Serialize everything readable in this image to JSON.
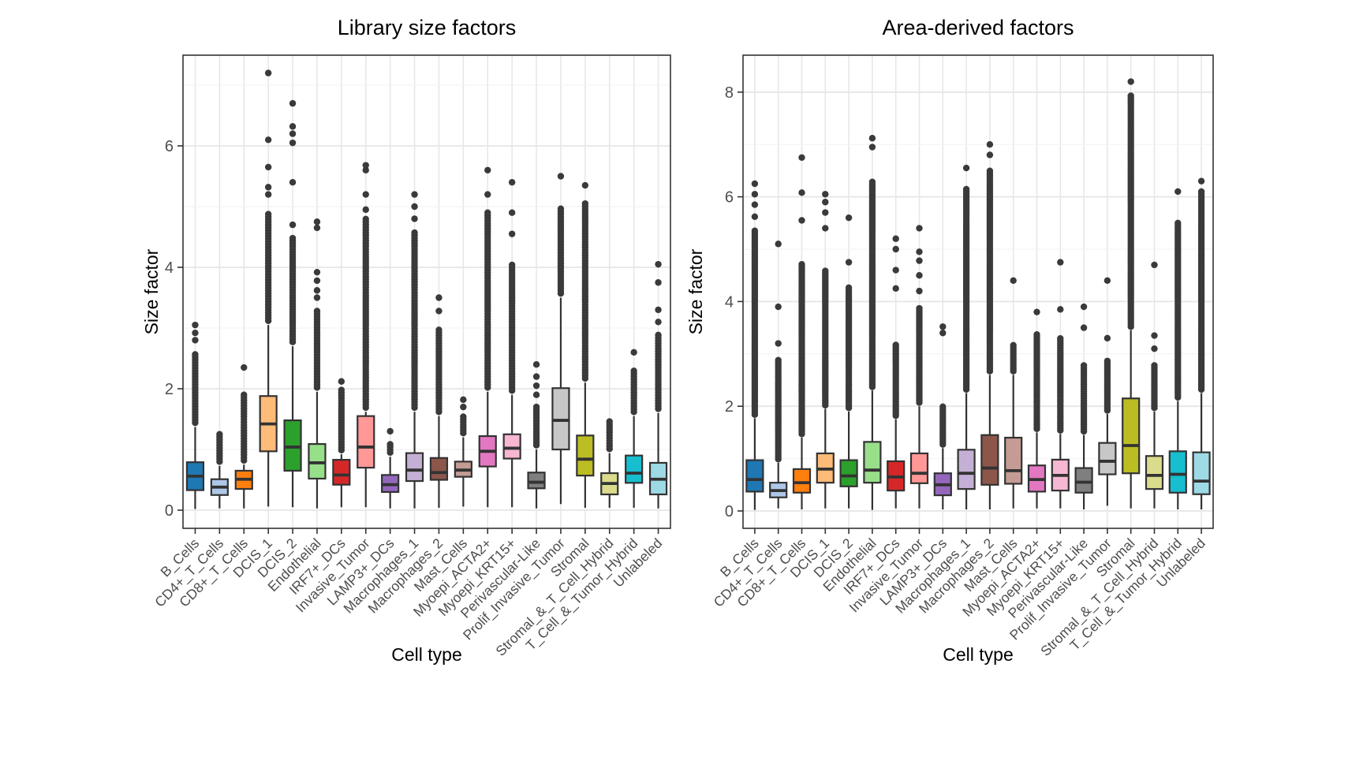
{
  "figure": {
    "background": "#ffffff",
    "outlier_color": "#3a3a3a",
    "box_stroke": "#333333"
  },
  "chart_data": {
    "type": "boxplot",
    "xlabel": "Cell type",
    "ylabel": "Size factor",
    "legend": "none",
    "grid": "on",
    "categories": [
      "B_Cells",
      "CD4+_T_Cells",
      "CD8+_T_Cells",
      "DCIS_1",
      "DCIS_2",
      "Endothelial",
      "IRF7+_DCs",
      "Invasive_Tumor",
      "LAMP3+_DCs",
      "Macrophages_1",
      "Macrophages_2",
      "Mast_Cells",
      "Myoepi_ACTA2+",
      "Myoepi_KRT15+",
      "Perivascular-Like",
      "Prolif_Invasive_Tumor",
      "Stromal",
      "Stromal_&_T_Cell_Hybrid",
      "T_Cell_&_Tumor_Hybrid",
      "Unlabeled"
    ],
    "category_colors": [
      "#1f77b4",
      "#aec7e8",
      "#ff7f0e",
      "#ffbb78",
      "#2ca02c",
      "#98df8a",
      "#d62728",
      "#ff9896",
      "#9467bd",
      "#c5b0d5",
      "#8c564b",
      "#c49c94",
      "#e377c2",
      "#f7b6d2",
      "#7f7f7f",
      "#c7c7c7",
      "#bcbd22",
      "#dbdb8d",
      "#17becf",
      "#9edae5"
    ],
    "panels": [
      {
        "title": "Library size factors",
        "yticks": [
          0,
          2,
          4,
          6
        ],
        "ylim": [
          -0.32,
          7.49
        ],
        "boxes": [
          {
            "category": "B_Cells",
            "lo": 0.02,
            "q1": 0.33,
            "median": 0.56,
            "q3": 0.79,
            "hi": 1.37,
            "outlier_run": [
              1.44,
              2.6
            ],
            "outliers": [
              2.8,
              2.92,
              3.05
            ]
          },
          {
            "category": "CD4+_T_Cells",
            "lo": 0.03,
            "q1": 0.25,
            "median": 0.38,
            "q3": 0.51,
            "hi": 0.73,
            "outlier_run": [
              0.8,
              1.25
            ],
            "outliers": []
          },
          {
            "category": "CD8+_T_Cells",
            "lo": 0.03,
            "q1": 0.35,
            "median": 0.51,
            "q3": 0.65,
            "hi": 0.75,
            "outlier_run": [
              0.82,
              1.9
            ],
            "outliers": [
              2.35
            ]
          },
          {
            "category": "DCIS_1",
            "lo": 0.06,
            "q1": 0.97,
            "median": 1.42,
            "q3": 1.88,
            "hi": 3.05,
            "outlier_run": [
              3.12,
              4.9
            ],
            "outliers": [
              5.2,
              5.32,
              5.65,
              6.1,
              7.2
            ]
          },
          {
            "category": "DCIS_2",
            "lo": 0.05,
            "q1": 0.65,
            "median": 1.04,
            "q3": 1.48,
            "hi": 2.7,
            "outlier_run": [
              2.77,
              4.5
            ],
            "outliers": [
              4.7,
              5.4,
              6.05,
              6.2,
              6.32,
              6.7
            ]
          },
          {
            "category": "Endothelial",
            "lo": 0.03,
            "q1": 0.52,
            "median": 0.78,
            "q3": 1.09,
            "hi": 1.95,
            "outlier_run": [
              2.02,
              3.3
            ],
            "outliers": [
              3.5,
              3.62,
              3.78,
              3.92,
              4.65,
              4.75
            ]
          },
          {
            "category": "IRF7+_DCs",
            "lo": 0.05,
            "q1": 0.42,
            "median": 0.58,
            "q3": 0.83,
            "hi": 0.92,
            "outlier_run": [
              0.99,
              2.0
            ],
            "outliers": [
              2.12
            ]
          },
          {
            "category": "Invasive_Tumor",
            "lo": 0.05,
            "q1": 0.7,
            "median": 1.04,
            "q3": 1.55,
            "hi": 1.62,
            "outlier_run": [
              1.69,
              4.8
            ],
            "outliers": [
              4.95,
              5.2,
              5.6,
              5.68
            ]
          },
          {
            "category": "LAMP3+_DCs",
            "lo": 0.03,
            "q1": 0.3,
            "median": 0.42,
            "q3": 0.58,
            "hi": 0.88,
            "outlier_run": [
              0.95,
              1.12
            ],
            "outliers": [
              1.3
            ]
          },
          {
            "category": "Macrophages_1",
            "lo": 0.03,
            "q1": 0.48,
            "median": 0.66,
            "q3": 0.94,
            "hi": 1.62,
            "outlier_run": [
              1.69,
              4.6
            ],
            "outliers": [
              4.8,
              5.0,
              5.2
            ]
          },
          {
            "category": "Macrophages_2",
            "lo": 0.04,
            "q1": 0.5,
            "median": 0.62,
            "q3": 0.86,
            "hi": 1.55,
            "outlier_run": [
              1.62,
              3.0
            ],
            "outliers": [
              3.28,
              3.5
            ]
          },
          {
            "category": "Mast_Cells",
            "lo": 0.06,
            "q1": 0.55,
            "median": 0.66,
            "q3": 0.8,
            "hi": 1.2,
            "outlier_run": [
              1.27,
              1.55
            ],
            "outliers": [
              1.7,
              1.82
            ]
          },
          {
            "category": "Myoepi_ACTA2+",
            "lo": 0.05,
            "q1": 0.72,
            "median": 0.97,
            "q3": 1.22,
            "hi": 1.95,
            "outlier_run": [
              2.02,
              4.9
            ],
            "outliers": [
              5.2,
              5.6
            ]
          },
          {
            "category": "Myoepi_KRT15+",
            "lo": 0.05,
            "q1": 0.85,
            "median": 1.02,
            "q3": 1.25,
            "hi": 1.9,
            "outlier_run": [
              1.97,
              4.05
            ],
            "outliers": [
              4.55,
              4.9,
              5.4
            ]
          },
          {
            "category": "Perivascular-Like",
            "lo": 0.03,
            "q1": 0.36,
            "median": 0.46,
            "q3": 0.62,
            "hi": 1.0,
            "outlier_run": [
              1.07,
              1.7
            ],
            "outliers": [
              1.9,
              2.05,
              2.2,
              2.4
            ]
          },
          {
            "category": "Prolif_Invasive_Tumor",
            "lo": 0.1,
            "q1": 1.0,
            "median": 1.48,
            "q3": 2.01,
            "hi": 3.5,
            "outlier_run": [
              3.57,
              5.0
            ],
            "outliers": [
              5.5
            ]
          },
          {
            "category": "Stromal",
            "lo": 0.04,
            "q1": 0.57,
            "median": 0.84,
            "q3": 1.23,
            "hi": 2.1,
            "outlier_run": [
              2.17,
              5.05
            ],
            "outliers": [
              5.35
            ]
          },
          {
            "category": "Stromal_&_T_Cell_Hybrid",
            "lo": 0.04,
            "q1": 0.26,
            "median": 0.44,
            "q3": 0.61,
            "hi": 0.94,
            "outlier_run": [
              1.01,
              1.5
            ],
            "outliers": []
          },
          {
            "category": "T_Cell_&_Tumor_Hybrid",
            "lo": 0.04,
            "q1": 0.45,
            "median": 0.61,
            "q3": 0.9,
            "hi": 1.55,
            "outlier_run": [
              1.62,
              2.3
            ],
            "outliers": [
              2.6
            ]
          },
          {
            "category": "Unlabeled",
            "lo": 0.03,
            "q1": 0.26,
            "median": 0.51,
            "q3": 0.78,
            "hi": 1.6,
            "outlier_run": [
              1.67,
              2.9
            ],
            "outliers": [
              3.1,
              3.3,
              3.75,
              4.05
            ]
          }
        ]
      },
      {
        "title": "Area-derived factors",
        "yticks": [
          0,
          2,
          4,
          6,
          8
        ],
        "ylim": [
          -0.32,
          8.7
        ],
        "boxes": [
          {
            "category": "B_Cells",
            "lo": 0.02,
            "q1": 0.37,
            "median": 0.6,
            "q3": 0.97,
            "hi": 1.77,
            "outlier_run": [
              1.84,
              5.35
            ],
            "outliers": [
              5.62,
              5.85,
              6.05,
              6.25
            ]
          },
          {
            "category": "CD4+_T_Cells",
            "lo": 0.05,
            "q1": 0.26,
            "median": 0.39,
            "q3": 0.54,
            "hi": 0.92,
            "outlier_run": [
              0.99,
              2.9
            ],
            "outliers": [
              3.2,
              3.9,
              5.1
            ]
          },
          {
            "category": "CD8+_T_Cells",
            "lo": 0.03,
            "q1": 0.35,
            "median": 0.54,
            "q3": 0.8,
            "hi": 1.4,
            "outlier_run": [
              1.47,
              4.75
            ],
            "outliers": [
              5.55,
              6.08,
              6.75
            ]
          },
          {
            "category": "DCIS_1",
            "lo": 0.05,
            "q1": 0.54,
            "median": 0.8,
            "q3": 1.1,
            "hi": 1.95,
            "outlier_run": [
              2.02,
              4.6
            ],
            "outliers": [
              5.4,
              5.7,
              5.9,
              6.05
            ]
          },
          {
            "category": "DCIS_2",
            "lo": 0.05,
            "q1": 0.47,
            "median": 0.67,
            "q3": 0.97,
            "hi": 1.9,
            "outlier_run": [
              1.97,
              4.3
            ],
            "outliers": [
              4.75,
              5.6
            ]
          },
          {
            "category": "Endothelial",
            "lo": 0.02,
            "q1": 0.54,
            "median": 0.78,
            "q3": 1.32,
            "hi": 2.3,
            "outlier_run": [
              2.37,
              6.3
            ],
            "outliers": [
              6.95,
              7.12
            ]
          },
          {
            "category": "IRF7+_DCs",
            "lo": 0.05,
            "q1": 0.39,
            "median": 0.65,
            "q3": 0.95,
            "hi": 1.75,
            "outlier_run": [
              1.82,
              3.2
            ],
            "outliers": [
              4.25,
              4.6,
              5.0,
              5.2
            ]
          },
          {
            "category": "Invasive_Tumor",
            "lo": 0.05,
            "q1": 0.53,
            "median": 0.72,
            "q3": 1.1,
            "hi": 2.0,
            "outlier_run": [
              2.07,
              3.9
            ],
            "outliers": [
              4.2,
              4.5,
              4.78,
              4.95,
              5.4
            ]
          },
          {
            "category": "LAMP3+_DCs",
            "lo": 0.03,
            "q1": 0.3,
            "median": 0.5,
            "q3": 0.72,
            "hi": 1.2,
            "outlier_run": [
              1.27,
              2.0
            ],
            "outliers": [
              3.4,
              3.52
            ]
          },
          {
            "category": "Macrophages_1",
            "lo": 0.03,
            "q1": 0.42,
            "median": 0.72,
            "q3": 1.17,
            "hi": 2.25,
            "outlier_run": [
              2.32,
              6.15
            ],
            "outliers": [
              6.55
            ]
          },
          {
            "category": "Macrophages_2",
            "lo": 0.03,
            "q1": 0.5,
            "median": 0.82,
            "q3": 1.45,
            "hi": 2.6,
            "outlier_run": [
              2.67,
              6.5
            ],
            "outliers": [
              6.8,
              7.0
            ]
          },
          {
            "category": "Mast_Cells",
            "lo": 0.05,
            "q1": 0.52,
            "median": 0.77,
            "q3": 1.4,
            "hi": 2.6,
            "outlier_run": [
              2.67,
              3.2
            ],
            "outliers": [
              4.4
            ]
          },
          {
            "category": "Myoepi_ACTA2+",
            "lo": 0.05,
            "q1": 0.37,
            "median": 0.6,
            "q3": 0.87,
            "hi": 1.5,
            "outlier_run": [
              1.57,
              3.4
            ],
            "outliers": [
              3.8
            ]
          },
          {
            "category": "Myoepi_KRT15+",
            "lo": 0.05,
            "q1": 0.39,
            "median": 0.68,
            "q3": 0.98,
            "hi": 1.47,
            "outlier_run": [
              1.54,
              3.3
            ],
            "outliers": [
              3.85,
              4.75
            ]
          },
          {
            "category": "Perivascular-Like",
            "lo": 0.03,
            "q1": 0.35,
            "median": 0.55,
            "q3": 0.82,
            "hi": 1.45,
            "outlier_run": [
              1.52,
              2.8
            ],
            "outliers": [
              3.5,
              3.9
            ]
          },
          {
            "category": "Prolif_Invasive_Tumor",
            "lo": 0.1,
            "q1": 0.7,
            "median": 0.95,
            "q3": 1.3,
            "hi": 1.85,
            "outlier_run": [
              1.92,
              2.9
            ],
            "outliers": [
              3.3,
              4.4
            ]
          },
          {
            "category": "Stromal",
            "lo": 0.05,
            "q1": 0.72,
            "median": 1.25,
            "q3": 2.15,
            "hi": 3.45,
            "outlier_run": [
              3.52,
              7.95
            ],
            "outliers": [
              8.2
            ]
          },
          {
            "category": "Stromal_&_T_Cell_Hybrid",
            "lo": 0.05,
            "q1": 0.42,
            "median": 0.68,
            "q3": 1.05,
            "hi": 1.9,
            "outlier_run": [
              1.97,
              2.8
            ],
            "outliers": [
              3.1,
              3.35,
              4.7
            ]
          },
          {
            "category": "T_Cell_&_Tumor_Hybrid",
            "lo": 0.03,
            "q1": 0.35,
            "median": 0.7,
            "q3": 1.14,
            "hi": 2.1,
            "outlier_run": [
              2.17,
              5.5
            ],
            "outliers": [
              6.1
            ]
          },
          {
            "category": "Unlabeled",
            "lo": 0.03,
            "q1": 0.32,
            "median": 0.57,
            "q3": 1.12,
            "hi": 2.25,
            "outlier_run": [
              2.32,
              6.1
            ],
            "outliers": [
              6.3
            ]
          }
        ]
      }
    ]
  }
}
